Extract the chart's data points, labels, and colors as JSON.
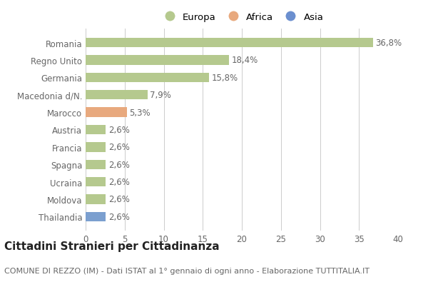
{
  "categories": [
    "Romania",
    "Regno Unito",
    "Germania",
    "Macedonia d/N.",
    "Marocco",
    "Austria",
    "Francia",
    "Spagna",
    "Ucraina",
    "Moldova",
    "Thailandia"
  ],
  "values": [
    36.8,
    18.4,
    15.8,
    7.9,
    5.3,
    2.6,
    2.6,
    2.6,
    2.6,
    2.6,
    2.6
  ],
  "labels": [
    "36,8%",
    "18,4%",
    "15,8%",
    "7,9%",
    "5,3%",
    "2,6%",
    "2,6%",
    "2,6%",
    "2,6%",
    "2,6%",
    "2,6%"
  ],
  "bar_colors": [
    "#b5c98e",
    "#b5c98e",
    "#b5c98e",
    "#b5c98e",
    "#e8a97e",
    "#b5c98e",
    "#b5c98e",
    "#b5c98e",
    "#b5c98e",
    "#b5c98e",
    "#7b9fcf"
  ],
  "legend_labels": [
    "Europa",
    "Africa",
    "Asia"
  ],
  "legend_colors": [
    "#b5c98e",
    "#e8a97e",
    "#6b8fcf"
  ],
  "title": "Cittadini Stranieri per Cittadinanza",
  "subtitle": "COMUNE DI REZZO (IM) - Dati ISTAT al 1° gennaio di ogni anno - Elaborazione TUTTITALIA.IT",
  "xlim": [
    0,
    40
  ],
  "xticks": [
    0,
    5,
    10,
    15,
    20,
    25,
    30,
    35,
    40
  ],
  "background_color": "#ffffff",
  "grid_color": "#cccccc",
  "bar_height": 0.55,
  "title_fontsize": 11,
  "subtitle_fontsize": 8,
  "label_fontsize": 8.5,
  "tick_fontsize": 8.5,
  "legend_fontsize": 9.5
}
